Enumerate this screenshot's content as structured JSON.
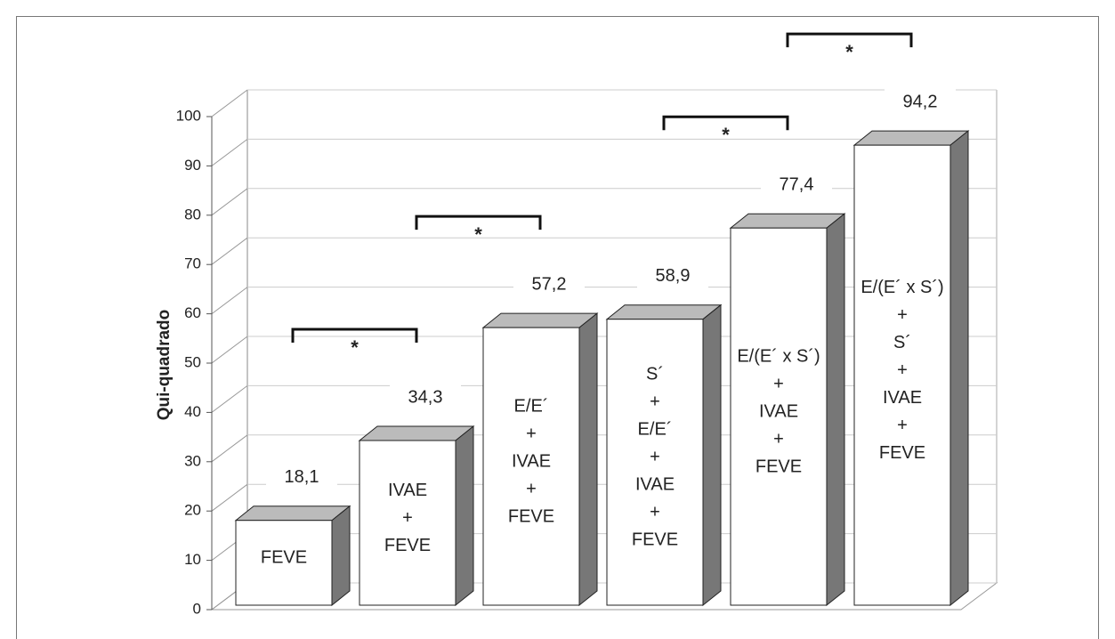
{
  "chart_data": {
    "type": "bar3d",
    "y_label": "Qui-quadrado",
    "categories": [
      [
        "FEVE"
      ],
      [
        "IVAE",
        "+",
        "FEVE"
      ],
      [
        "E/E´",
        "+",
        "IVAE",
        "+",
        "FEVE"
      ],
      [
        "S´",
        "+",
        "E/E´",
        "+",
        "IVAE",
        "+",
        "FEVE"
      ],
      [
        "E/(E´ x S´)",
        "+",
        "IVAE",
        "+",
        "FEVE"
      ],
      [
        "E/(E´ x S´)",
        "+",
        "S´",
        "+",
        "IVAE",
        "+",
        "FEVE"
      ]
    ],
    "values": [
      18.1,
      34.3,
      57.2,
      58.9,
      77.4,
      94.2
    ],
    "value_labels": [
      "18,1",
      "34,3",
      "57,2",
      "58,9",
      "77,4",
      "94,2"
    ],
    "color": "#ffffff",
    "ylim": [
      0,
      100
    ],
    "yticks": [
      0,
      10,
      20,
      30,
      40,
      50,
      60,
      70,
      80,
      90,
      100
    ],
    "grid": true,
    "significance": [
      {
        "label": "*",
        "bars": [
          0,
          1
        ]
      },
      {
        "label": "*",
        "bars": [
          1,
          2
        ]
      },
      {
        "label": "*",
        "bars": [
          3,
          4
        ]
      },
      {
        "label": "*",
        "bars": [
          4,
          5
        ]
      }
    ]
  }
}
